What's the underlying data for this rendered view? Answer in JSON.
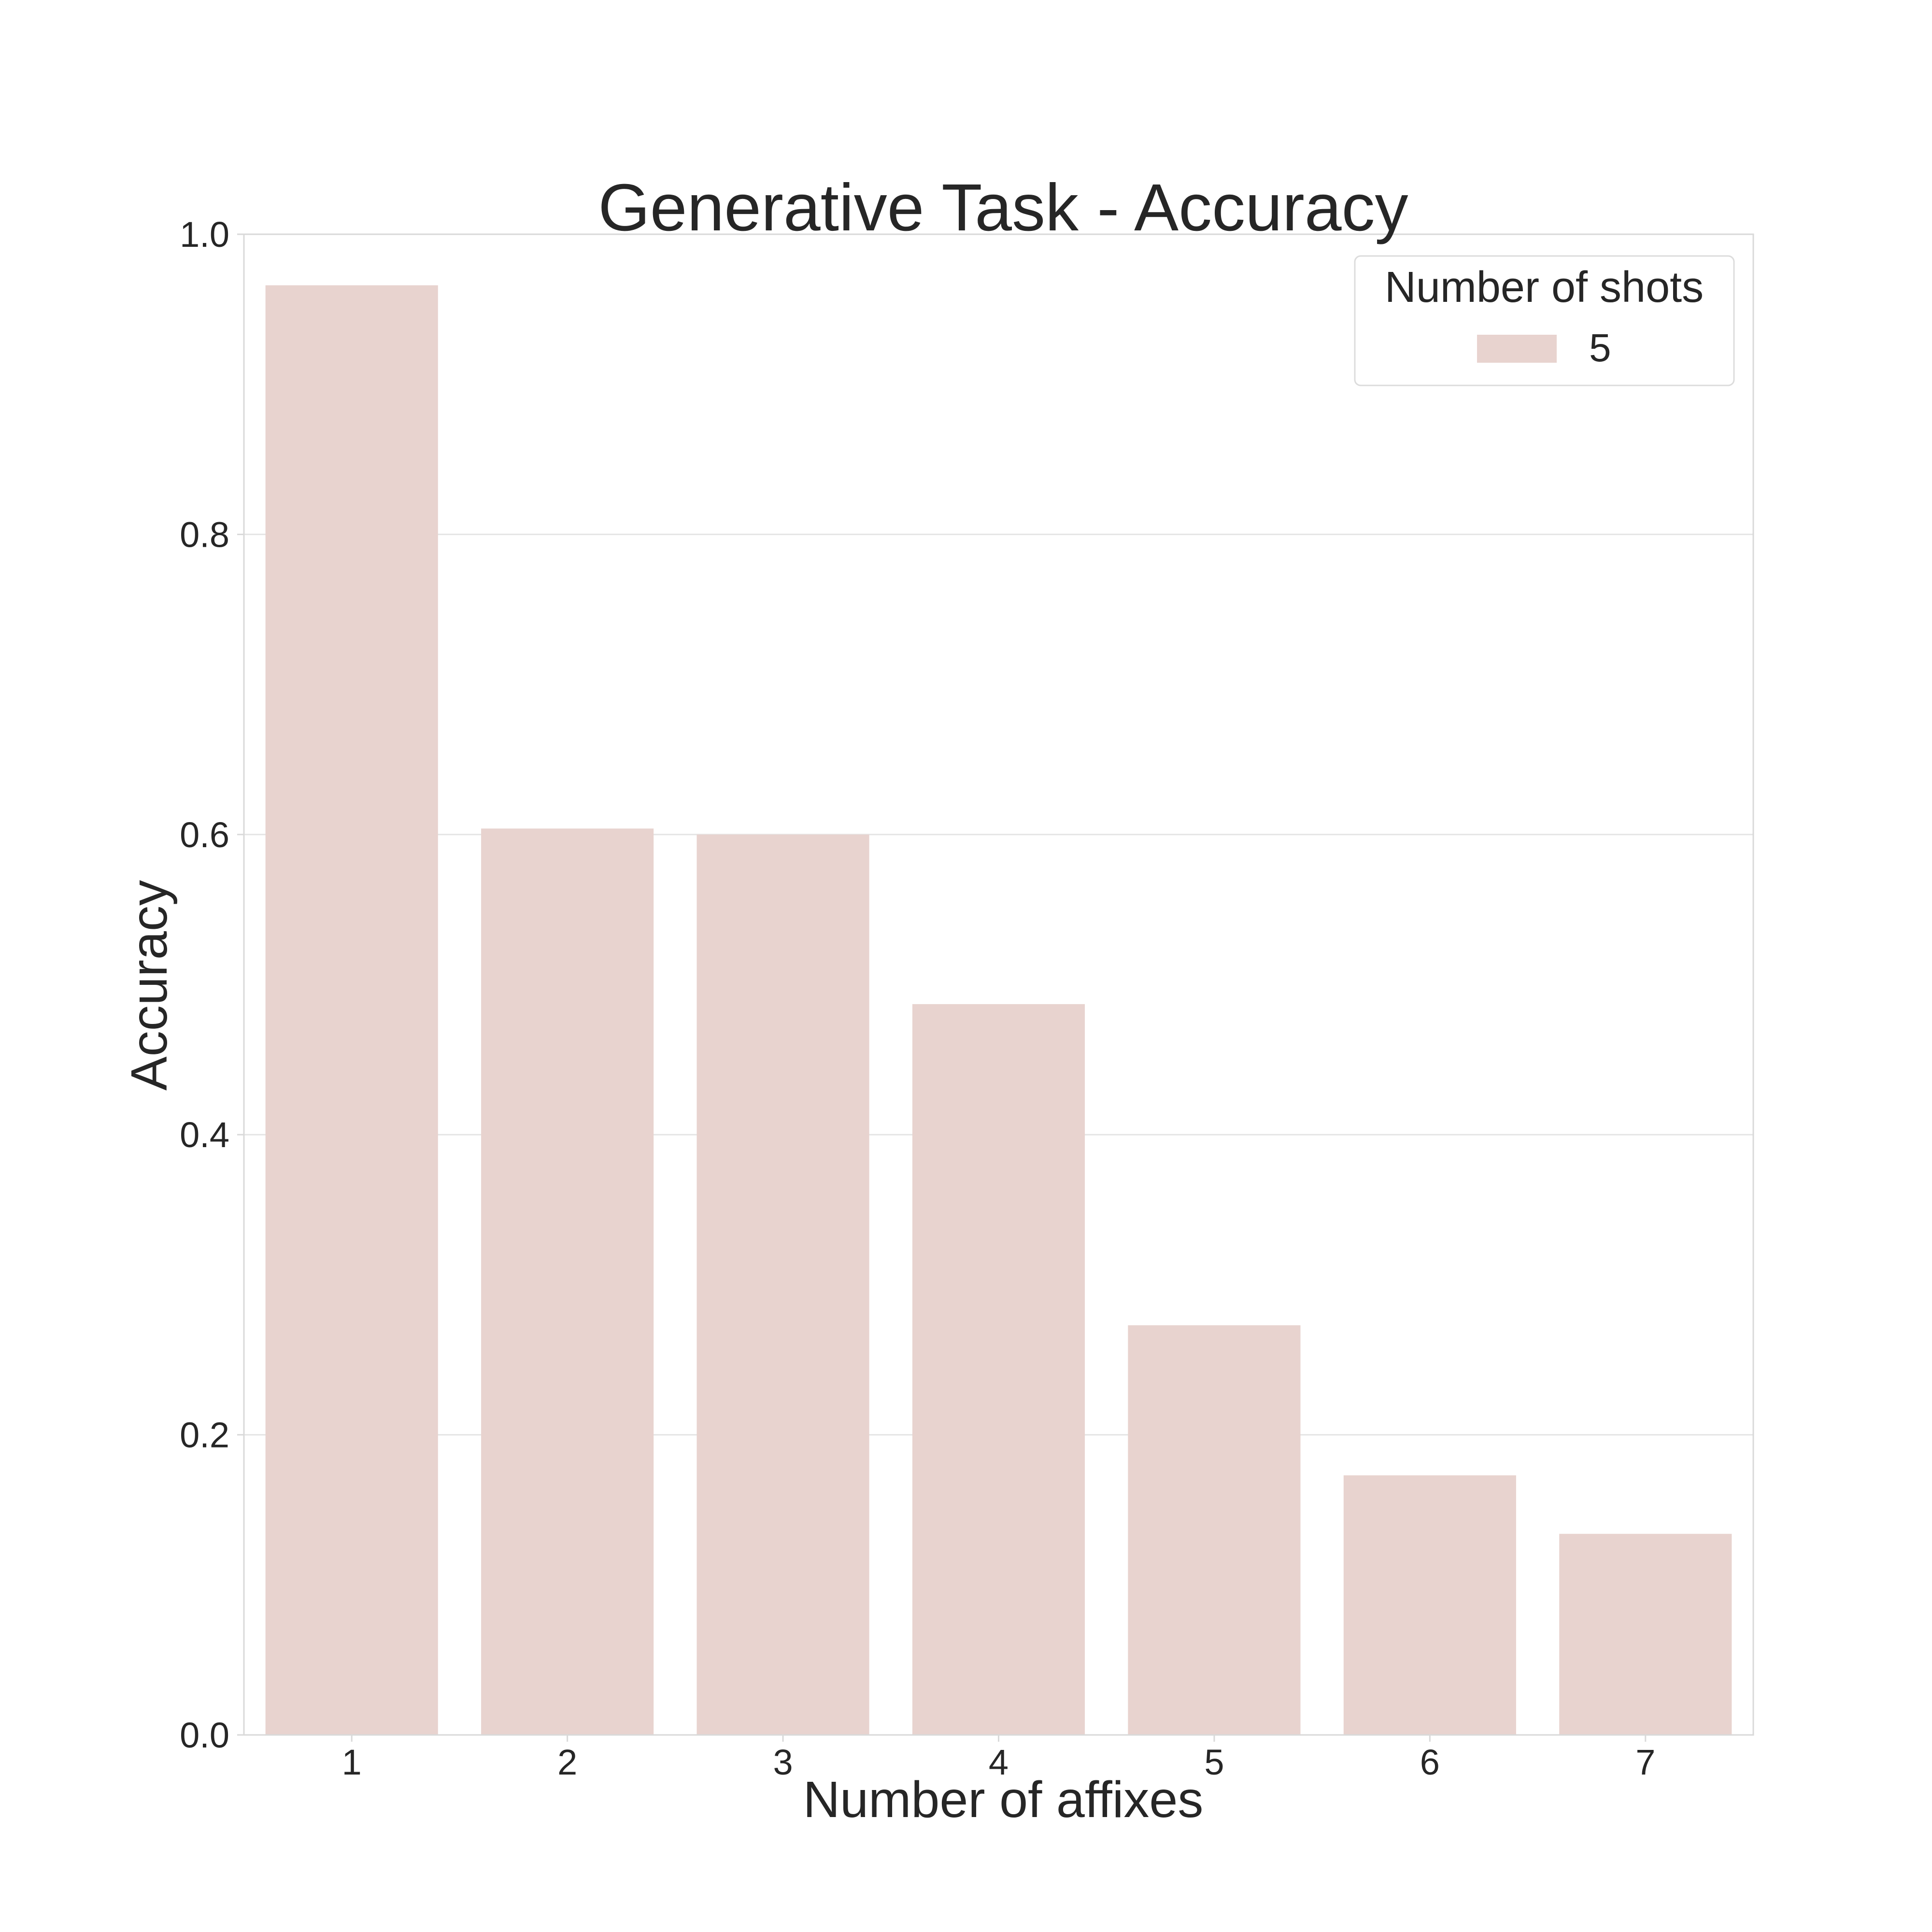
{
  "chart_data": {
    "type": "bar",
    "title": "Generative Task - Accuracy",
    "xlabel": "Number of affixes",
    "ylabel": "Accuracy",
    "categories": [
      "1",
      "2",
      "3",
      "4",
      "5",
      "6",
      "7"
    ],
    "series": [
      {
        "name": "5",
        "values": [
          0.966,
          0.604,
          0.6,
          0.487,
          0.273,
          0.173,
          0.134
        ],
        "color": "#e8d3cf"
      }
    ],
    "ylim": [
      0,
      1.0
    ],
    "yticks": [
      "0.0",
      "0.2",
      "0.4",
      "0.6",
      "0.8",
      "1.0"
    ],
    "grid": true,
    "legend": {
      "title": "Number of shots",
      "position": "top-right"
    },
    "colors": {
      "grid": "#e5e5e5",
      "frame": "#d9d9d9",
      "text": "#262626"
    }
  }
}
